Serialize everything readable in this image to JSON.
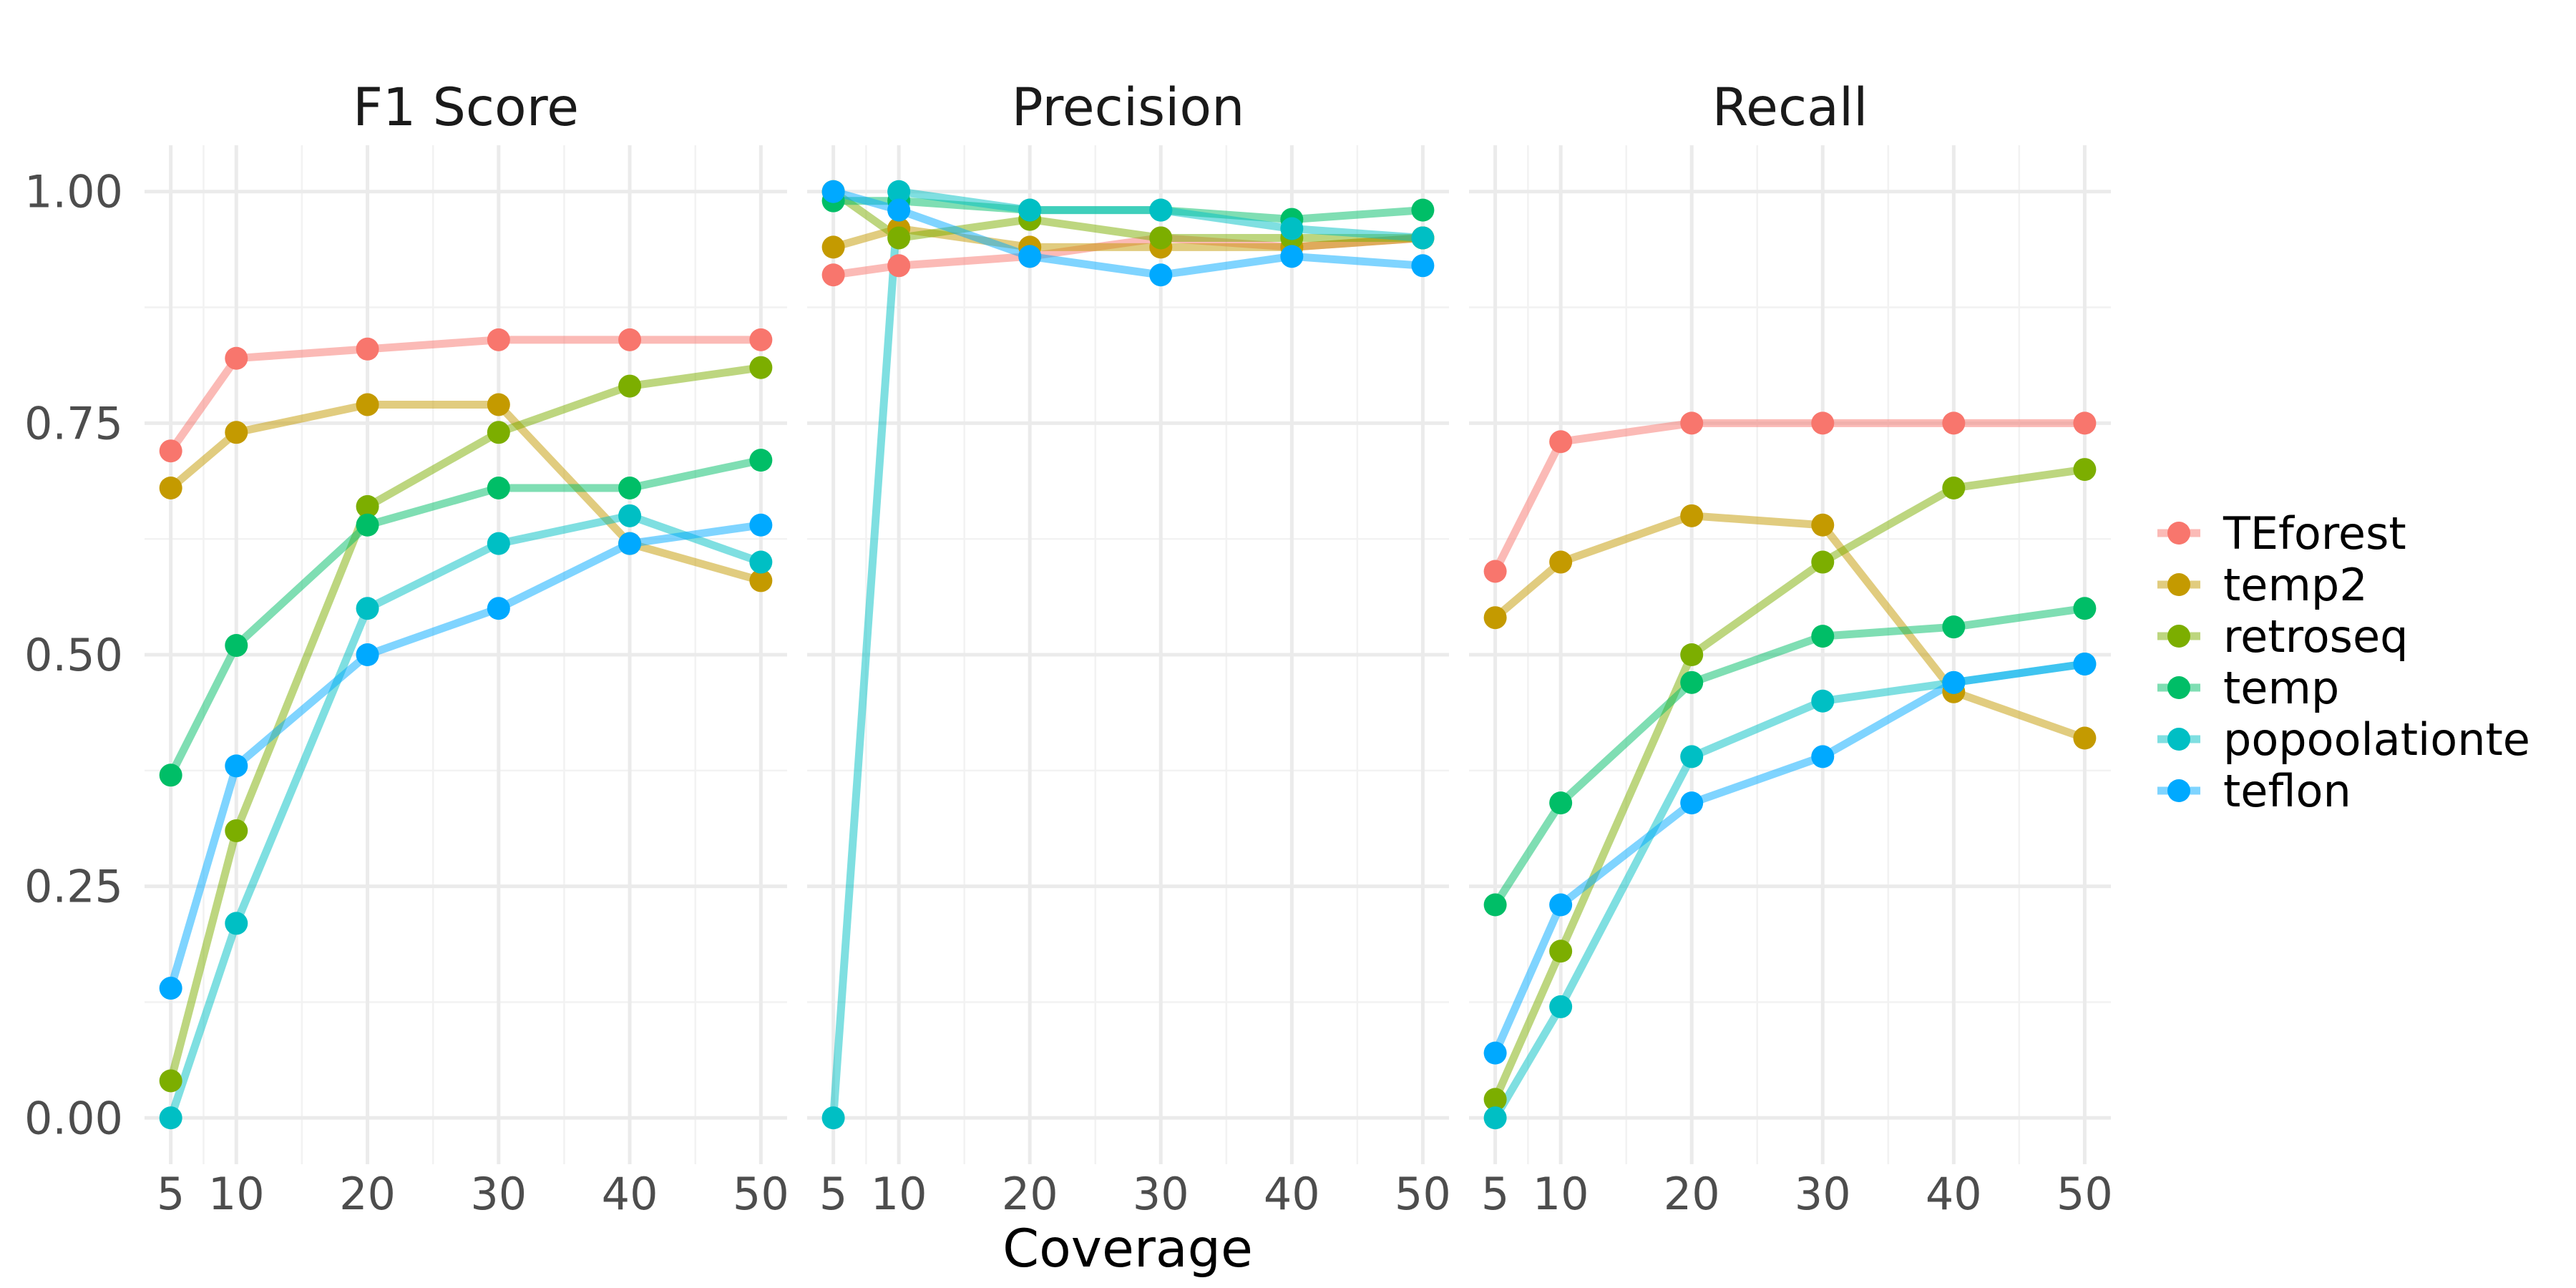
{
  "chart_data": {
    "type": "line",
    "xlabel": "Coverage",
    "ylabel": "",
    "ylim": [
      -0.05,
      1.05
    ],
    "y_ticks": [
      0,
      0.25,
      0.5,
      0.75,
      1
    ],
    "y_tick_labels": [
      "0.00",
      "0.25",
      "0.50",
      "0.75",
      "1.00"
    ],
    "x_ticks": [
      5,
      10,
      20,
      30,
      40,
      50
    ],
    "x_tick_labels": [
      "5",
      "10",
      "20",
      "30",
      "40",
      "50"
    ],
    "xlim": [
      3,
      52
    ],
    "x": [
      5,
      10,
      20,
      30,
      40,
      50
    ],
    "grid": true,
    "legend": "right",
    "series": [
      {
        "name": "TEforest",
        "color": "#F8766D"
      },
      {
        "name": "temp2",
        "color": "#C49A00"
      },
      {
        "name": "retroseq",
        "color": "#7CAE00"
      },
      {
        "name": "temp",
        "color": "#00BE67"
      },
      {
        "name": "popoolationte",
        "color": "#00BFC4"
      },
      {
        "name": "teflon",
        "color": "#00A9FF"
      }
    ],
    "facets": [
      {
        "title": "F1 Score",
        "values": [
          [
            0.72,
            0.82,
            0.83,
            0.84,
            0.84,
            0.84
          ],
          [
            0.68,
            0.74,
            0.77,
            0.77,
            0.62,
            0.58
          ],
          [
            0.04,
            0.31,
            0.66,
            0.74,
            0.79,
            0.81
          ],
          [
            0.37,
            0.51,
            0.64,
            0.68,
            0.68,
            0.71
          ],
          [
            0.0,
            0.21,
            0.55,
            0.62,
            0.65,
            0.6
          ],
          [
            0.14,
            0.38,
            0.5,
            0.55,
            0.62,
            0.64
          ]
        ]
      },
      {
        "title": "Precision",
        "values": [
          [
            0.91,
            0.92,
            0.93,
            0.95,
            0.94,
            0.95
          ],
          [
            0.94,
            0.96,
            0.94,
            0.94,
            0.94,
            0.95
          ],
          [
            1.0,
            0.95,
            0.97,
            0.95,
            0.95,
            0.95
          ],
          [
            0.99,
            0.99,
            0.98,
            0.98,
            0.97,
            0.98
          ],
          [
            0.0,
            1.0,
            0.98,
            0.98,
            0.96,
            0.95
          ],
          [
            1.0,
            0.98,
            0.93,
            0.91,
            0.93,
            0.92
          ]
        ]
      },
      {
        "title": "Recall",
        "values": [
          [
            0.59,
            0.73,
            0.75,
            0.75,
            0.75,
            0.75
          ],
          [
            0.54,
            0.6,
            0.65,
            0.64,
            0.46,
            0.41
          ],
          [
            0.02,
            0.18,
            0.5,
            0.6,
            0.68,
            0.7
          ],
          [
            0.23,
            0.34,
            0.47,
            0.52,
            0.53,
            0.55
          ],
          [
            0.0,
            0.12,
            0.39,
            0.45,
            0.47,
            0.49
          ],
          [
            0.07,
            0.23,
            0.34,
            0.39,
            0.47,
            0.49
          ]
        ]
      }
    ]
  }
}
